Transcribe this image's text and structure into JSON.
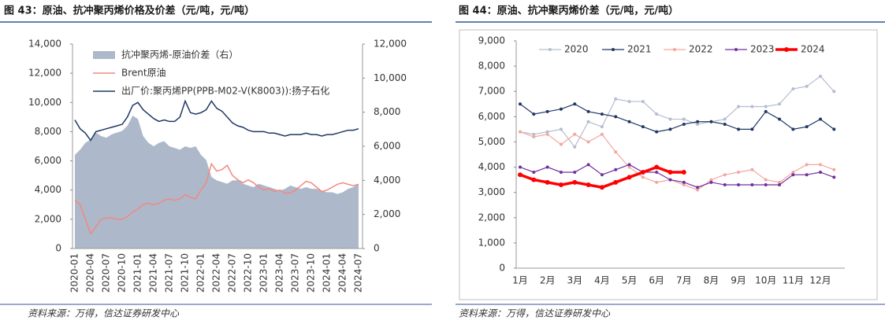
{
  "chart_data": [
    {
      "type": "line",
      "title": "图 43：原油、抗冲聚丙烯价格及价差（元/吨，元/吨）",
      "source": "资料来源：万得，信达证券研发中心",
      "categories": [
        "2020-01",
        null,
        null,
        "2020-04",
        null,
        null,
        "2020-07",
        null,
        null,
        "2020-10",
        null,
        null,
        "2021-01",
        null,
        null,
        "2021-04",
        null,
        null,
        "2021-07",
        null,
        null,
        "2021-10",
        null,
        null,
        "2022-01",
        null,
        null,
        "2022-04",
        null,
        null,
        "2022-07",
        null,
        null,
        "2022-10",
        null,
        null,
        "2023-01",
        null,
        null,
        "2023-04",
        null,
        null,
        "2023-07",
        null,
        null,
        "2023-10",
        null,
        null,
        "2024-01",
        null,
        null,
        "2024-04",
        null,
        null,
        "2024-07"
      ],
      "ylim": [
        0,
        14000
      ],
      "yticks": [
        0,
        {
          "value": 2000,
          "label": "2,000"
        },
        {
          "value": 4000,
          "label": "4,000"
        },
        {
          "value": 6000,
          "label": "6,000"
        },
        {
          "value": 8000,
          "label": "8,000"
        },
        {
          "value": 10000,
          "label": "10,000"
        },
        {
          "value": 12000,
          "label": "12,000"
        },
        {
          "value": 14000,
          "label": "14,000"
        }
      ],
      "y2lim": [
        0,
        12000
      ],
      "y2ticks": [
        0,
        {
          "value": 2000,
          "label": "2,000"
        },
        {
          "value": 4000,
          "label": "4,000"
        },
        {
          "value": 6000,
          "label": "6,000"
        },
        {
          "value": 8000,
          "label": "8,000"
        },
        {
          "value": 10000,
          "label": "10,000"
        },
        {
          "value": 12000,
          "label": "12,000"
        }
      ],
      "legend": "upper left",
      "series": [
        {
          "name": "抗冲聚丙烯-原油价差（右）",
          "type": "area",
          "axis": "y2",
          "color": "#adb9ca",
          "values": [
            5500,
            5800,
            6200,
            6400,
            6800,
            6600,
            6500,
            6700,
            6800,
            6900,
            7200,
            7800,
            7600,
            6600,
            6200,
            6000,
            6200,
            6300,
            6000,
            5900,
            5800,
            6000,
            5900,
            6000,
            5500,
            5200,
            4200,
            4000,
            3900,
            3800,
            4000,
            4000,
            3800,
            3700,
            3600,
            3800,
            3700,
            3600,
            3500,
            3400,
            3500,
            3700,
            3600,
            3500,
            3600,
            3500,
            3500,
            3400,
            3300,
            3300,
            3200,
            3300,
            3500,
            3600,
            3800
          ]
        },
        {
          "name": "Brent原油",
          "type": "line",
          "color": "#f4877d",
          "values": [
            3300,
            3000,
            2000,
            1000,
            1500,
            2000,
            2100,
            2100,
            2000,
            2000,
            2200,
            2500,
            2700,
            3000,
            3100,
            3000,
            3100,
            3300,
            3400,
            3300,
            3400,
            3700,
            3500,
            3400,
            4000,
            4500,
            5800,
            5300,
            5400,
            5700,
            5000,
            4700,
            4500,
            4700,
            4500,
            4200,
            4000,
            4100,
            3900,
            4000,
            3800,
            3800,
            4000,
            4300,
            4600,
            4500,
            4200,
            3900,
            4000,
            4200,
            4400,
            4500,
            4400,
            4300,
            4400
          ]
        },
        {
          "name": "出厂价:聚丙烯PP(PPB-M02-V(K8003)):扬子石化",
          "type": "line",
          "color": "#1f3864",
          "values": [
            8800,
            8200,
            7900,
            7400,
            8000,
            8100,
            8200,
            8300,
            8400,
            8500,
            9000,
            9800,
            10000,
            9500,
            9200,
            8900,
            8700,
            8800,
            8700,
            8700,
            9000,
            10100,
            9300,
            9200,
            9300,
            9500,
            10100,
            9600,
            9400,
            9000,
            8600,
            8400,
            8300,
            8100,
            8000,
            8000,
            8000,
            7900,
            7900,
            7800,
            7700,
            7800,
            7800,
            7800,
            7900,
            7800,
            7800,
            7700,
            7800,
            7800,
            7900,
            8000,
            8100,
            8100,
            8200
          ]
        }
      ]
    },
    {
      "type": "line",
      "title": "图 44：原油、抗冲聚丙烯价差（元/吨，元/吨）",
      "source": "资料来源：万得，信达证券研发中心",
      "categories": [
        "1月",
        null,
        "2月",
        null,
        "3月",
        null,
        "4月",
        null,
        "5月",
        null,
        "6月",
        null,
        "7月",
        null,
        "8月",
        null,
        "9月",
        null,
        "10月",
        null,
        "11月",
        null,
        "12月",
        null
      ],
      "ylim": [
        0,
        9000
      ],
      "yticks": [
        0,
        {
          "value": 1000,
          "label": "1,000"
        },
        {
          "value": 2000,
          "label": "2,000"
        },
        {
          "value": 3000,
          "label": "3,000"
        },
        {
          "value": 4000,
          "label": "4,000"
        },
        {
          "value": 5000,
          "label": "5,000"
        },
        {
          "value": 6000,
          "label": "6,000"
        },
        {
          "value": 7000,
          "label": "7,000"
        },
        {
          "value": 8000,
          "label": "8,000"
        },
        {
          "value": 9000,
          "label": "9,000"
        }
      ],
      "legend": "top",
      "series": [
        {
          "name": "2020",
          "color": "#b4bdd1",
          "values": [
            5400,
            5300,
            5400,
            5500,
            4800,
            5800,
            5600,
            6700,
            6600,
            6600,
            6100,
            5900,
            5900,
            5700,
            5800,
            5900,
            6400,
            6400,
            6400,
            6500,
            7100,
            7200,
            7600,
            7000
          ]
        },
        {
          "name": "2021",
          "color": "#203864",
          "values": [
            6500,
            6100,
            6200,
            6300,
            6500,
            6200,
            6100,
            6000,
            5800,
            5600,
            5400,
            5500,
            5700,
            5800,
            5800,
            5700,
            5500,
            5500,
            6200,
            5900,
            5500,
            5600,
            5900,
            5500
          ]
        },
        {
          "name": "2022",
          "color": "#f4a6a0",
          "values": [
            5400,
            5200,
            5300,
            4900,
            5300,
            5000,
            5300,
            4600,
            4000,
            3600,
            3400,
            3500,
            3300,
            3100,
            3500,
            3700,
            3800,
            3900,
            3500,
            3400,
            3800,
            4100,
            4100,
            3900
          ]
        },
        {
          "name": "2023",
          "color": "#7030a0",
          "values": [
            4000,
            3800,
            4000,
            3800,
            3800,
            4100,
            3700,
            3900,
            4100,
            3800,
            3800,
            3500,
            3400,
            3200,
            3400,
            3300,
            3300,
            3300,
            3300,
            3300,
            3700,
            3700,
            3800,
            3600
          ]
        },
        {
          "name": "2024",
          "color": "#ff0000",
          "bold": true,
          "values": [
            3700,
            3500,
            3400,
            3300,
            3400,
            3300,
            3200,
            3400,
            3600,
            3800,
            4000,
            3800,
            3800,
            null,
            null,
            null,
            null,
            null,
            null,
            null,
            null,
            null,
            null,
            null
          ]
        }
      ]
    }
  ]
}
